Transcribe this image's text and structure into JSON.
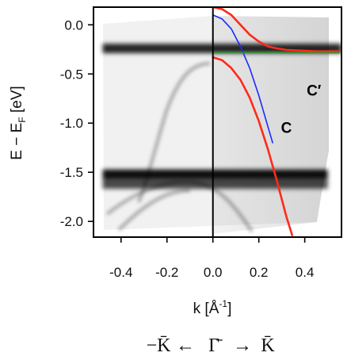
{
  "chart_data": {
    "type": "line",
    "title": "",
    "xlabel": "k [Å",
    "xlabel_sup": "-1",
    "xlabel_tail": "]",
    "ylabel": "E − E",
    "ylabel_sub": "F",
    "ylabel_unit": " [eV]",
    "xlim": [
      -0.52,
      0.56
    ],
    "ylim": [
      -2.16,
      0.18
    ],
    "xticks": [
      -0.4,
      -0.2,
      0.0,
      0.2,
      0.4
    ],
    "xtick_labels": [
      "-0.4",
      "-0.2",
      "0.0",
      "0.2",
      "0.4"
    ],
    "yticks": [
      0.0,
      -0.5,
      -1.0,
      -1.5,
      -2.0
    ],
    "ytick_labels": [
      "0.0",
      "-0.5",
      "-1.0",
      "-1.5",
      "-2.0"
    ],
    "vertical_line_x": 0.0,
    "grid": false,
    "legend": "none",
    "direction_label": {
      "left": "−K̄",
      "left_arrow": "←",
      "center": "Γ̄",
      "right_arrow": "→",
      "right": "K̄"
    },
    "annotations": [
      {
        "text": "C′",
        "x": 0.44,
        "y": -0.72
      },
      {
        "text": "C",
        "x": 0.32,
        "y": -1.1
      }
    ],
    "intensity_bands": [
      {
        "name": "flat band",
        "y": -0.24,
        "x_range": [
          -0.48,
          0.56
        ],
        "strength": 0.85
      },
      {
        "name": "flat band",
        "y": -1.52,
        "x_range": [
          -0.48,
          0.5
        ],
        "strength": 0.95
      },
      {
        "name": "flat band",
        "y": -1.62,
        "x_range": [
          -0.48,
          0.5
        ],
        "strength": 0.7
      }
    ],
    "series": [
      {
        "color": "#ff2a1a",
        "x": [
          0.0,
          0.04,
          0.08,
          0.12,
          0.16,
          0.2,
          0.24,
          0.28,
          0.32,
          0.36,
          0.4,
          0.45,
          0.5,
          0.55
        ],
        "y": [
          0.18,
          0.16,
          0.1,
          0.0,
          -0.1,
          -0.17,
          -0.22,
          -0.24,
          -0.255,
          -0.26,
          -0.265,
          -0.27,
          -0.27,
          -0.27
        ]
      },
      {
        "color": "#ff2a1a",
        "x": [
          0.0,
          0.04,
          0.08,
          0.12,
          0.16,
          0.2,
          0.24,
          0.28,
          0.32,
          0.345
        ],
        "y": [
          -0.33,
          -0.36,
          -0.44,
          -0.56,
          -0.74,
          -0.98,
          -1.27,
          -1.6,
          -1.95,
          -2.14
        ]
      },
      {
        "color": "#1a2aff",
        "x": [
          0.0,
          0.04,
          0.08,
          0.12,
          0.16,
          0.2,
          0.24,
          0.26
        ],
        "y": [
          0.1,
          0.06,
          -0.04,
          -0.22,
          -0.44,
          -0.72,
          -1.04,
          -1.2
        ]
      },
      {
        "color": "#2f9a2f",
        "x": [
          0.0,
          0.55
        ],
        "y": [
          -0.285,
          -0.285
        ]
      }
    ]
  }
}
